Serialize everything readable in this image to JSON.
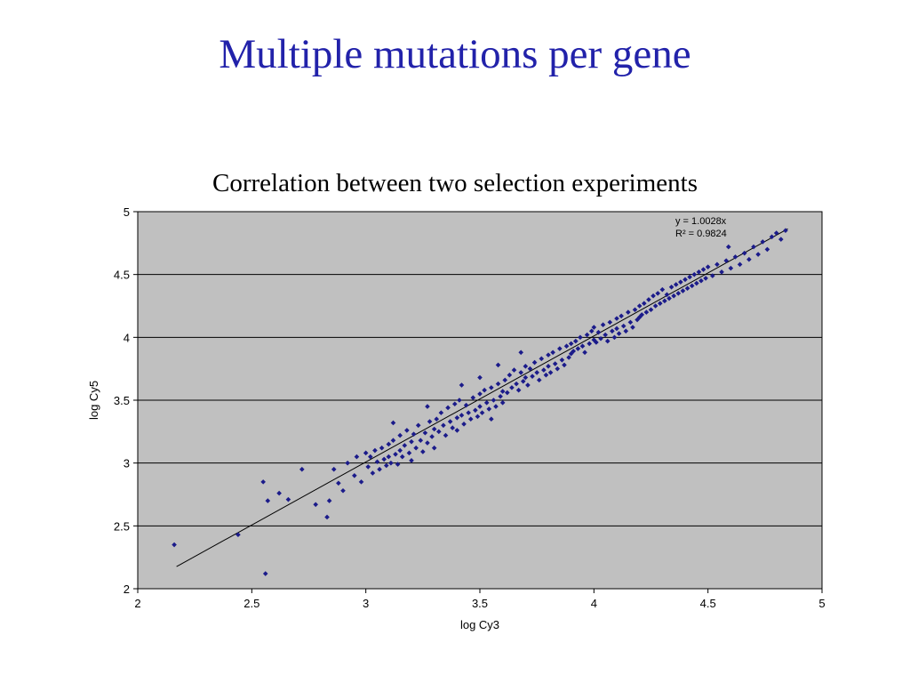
{
  "slide": {
    "title": "Multiple mutations per gene",
    "subtitle": "Correlation between two selection experiments"
  },
  "colors": {
    "title": "#2222aa",
    "subtitle": "#000000",
    "plot_bg": "#c0c0c0",
    "grid": "#000000",
    "point": "#1b1b8a",
    "trendline": "#000000"
  },
  "chart_data": {
    "type": "scatter",
    "title": "",
    "xlabel": "log Cy3",
    "ylabel": "log Cy5",
    "xlim": [
      2,
      5
    ],
    "ylim": [
      2,
      5
    ],
    "x_ticks": [
      2,
      2.5,
      3,
      3.5,
      4,
      4.5,
      5
    ],
    "y_ticks": [
      5,
      4.5,
      4,
      3.5,
      3,
      2.5,
      2
    ],
    "grid": "horizontal-major",
    "legend_position": "none",
    "annotation": [
      "y = 1.0028x",
      "R² = 0.9824"
    ],
    "trendline": {
      "slope": 1.0028,
      "intercept": 0,
      "x_start": 2.17,
      "x_end": 4.85
    },
    "points": [
      [
        2.16,
        2.35
      ],
      [
        2.44,
        2.43
      ],
      [
        2.55,
        2.85
      ],
      [
        2.56,
        2.12
      ],
      [
        2.57,
        2.7
      ],
      [
        2.62,
        2.76
      ],
      [
        2.66,
        2.71
      ],
      [
        2.72,
        2.95
      ],
      [
        2.78,
        2.67
      ],
      [
        2.83,
        2.57
      ],
      [
        2.84,
        2.7
      ],
      [
        2.86,
        2.95
      ],
      [
        2.88,
        2.84
      ],
      [
        2.9,
        2.78
      ],
      [
        2.92,
        3.0
      ],
      [
        2.95,
        2.9
      ],
      [
        2.96,
        3.05
      ],
      [
        2.98,
        2.85
      ],
      [
        3.0,
        3.08
      ],
      [
        3.01,
        2.97
      ],
      [
        3.02,
        3.05
      ],
      [
        3.03,
        2.92
      ],
      [
        3.04,
        3.1
      ],
      [
        3.05,
        3.01
      ],
      [
        3.06,
        2.95
      ],
      [
        3.07,
        3.12
      ],
      [
        3.08,
        3.03
      ],
      [
        3.09,
        2.98
      ],
      [
        3.1,
        3.15
      ],
      [
        3.1,
        3.05
      ],
      [
        3.11,
        3.0
      ],
      [
        3.12,
        3.32
      ],
      [
        3.12,
        3.18
      ],
      [
        3.13,
        3.07
      ],
      [
        3.14,
        2.99
      ],
      [
        3.15,
        3.22
      ],
      [
        3.15,
        3.1
      ],
      [
        3.16,
        3.05
      ],
      [
        3.17,
        3.14
      ],
      [
        3.18,
        3.26
      ],
      [
        3.19,
        3.08
      ],
      [
        3.2,
        3.17
      ],
      [
        3.2,
        3.02
      ],
      [
        3.21,
        3.23
      ],
      [
        3.22,
        3.12
      ],
      [
        3.23,
        3.3
      ],
      [
        3.24,
        3.18
      ],
      [
        3.25,
        3.09
      ],
      [
        3.26,
        3.24
      ],
      [
        3.27,
        3.45
      ],
      [
        3.27,
        3.16
      ],
      [
        3.28,
        3.33
      ],
      [
        3.29,
        3.21
      ],
      [
        3.3,
        3.27
      ],
      [
        3.3,
        3.12
      ],
      [
        3.31,
        3.35
      ],
      [
        3.32,
        3.25
      ],
      [
        3.33,
        3.4
      ],
      [
        3.34,
        3.3
      ],
      [
        3.35,
        3.22
      ],
      [
        3.36,
        3.44
      ],
      [
        3.37,
        3.33
      ],
      [
        3.38,
        3.28
      ],
      [
        3.39,
        3.47
      ],
      [
        3.4,
        3.36
      ],
      [
        3.4,
        3.26
      ],
      [
        3.41,
        3.5
      ],
      [
        3.42,
        3.62
      ],
      [
        3.42,
        3.38
      ],
      [
        3.43,
        3.31
      ],
      [
        3.44,
        3.46
      ],
      [
        3.45,
        3.4
      ],
      [
        3.46,
        3.35
      ],
      [
        3.47,
        3.52
      ],
      [
        3.48,
        3.42
      ],
      [
        3.49,
        3.37
      ],
      [
        3.5,
        3.68
      ],
      [
        3.5,
        3.55
      ],
      [
        3.5,
        3.45
      ],
      [
        3.51,
        3.4
      ],
      [
        3.52,
        3.58
      ],
      [
        3.53,
        3.48
      ],
      [
        3.54,
        3.43
      ],
      [
        3.55,
        3.35
      ],
      [
        3.55,
        3.6
      ],
      [
        3.56,
        3.5
      ],
      [
        3.57,
        3.45
      ],
      [
        3.58,
        3.78
      ],
      [
        3.58,
        3.63
      ],
      [
        3.59,
        3.53
      ],
      [
        3.6,
        3.57
      ],
      [
        3.6,
        3.48
      ],
      [
        3.61,
        3.66
      ],
      [
        3.62,
        3.56
      ],
      [
        3.63,
        3.7
      ],
      [
        3.64,
        3.6
      ],
      [
        3.65,
        3.74
      ],
      [
        3.66,
        3.63
      ],
      [
        3.67,
        3.58
      ],
      [
        3.68,
        3.88
      ],
      [
        3.68,
        3.72
      ],
      [
        3.69,
        3.65
      ],
      [
        3.7,
        3.77
      ],
      [
        3.7,
        3.68
      ],
      [
        3.71,
        3.62
      ],
      [
        3.72,
        3.75
      ],
      [
        3.73,
        3.69
      ],
      [
        3.74,
        3.8
      ],
      [
        3.75,
        3.72
      ],
      [
        3.76,
        3.66
      ],
      [
        3.77,
        3.83
      ],
      [
        3.78,
        3.74
      ],
      [
        3.79,
        3.7
      ],
      [
        3.8,
        3.86
      ],
      [
        3.8,
        3.77
      ],
      [
        3.81,
        3.72
      ],
      [
        3.82,
        3.88
      ],
      [
        3.83,
        3.79
      ],
      [
        3.84,
        3.75
      ],
      [
        3.85,
        3.91
      ],
      [
        3.86,
        3.82
      ],
      [
        3.87,
        3.78
      ],
      [
        3.88,
        3.93
      ],
      [
        3.89,
        3.84
      ],
      [
        3.9,
        3.95
      ],
      [
        3.9,
        3.87
      ],
      [
        3.91,
        3.89
      ],
      [
        3.92,
        3.97
      ],
      [
        3.93,
        3.91
      ],
      [
        3.94,
        4.0
      ],
      [
        3.95,
        3.93
      ],
      [
        3.96,
        3.88
      ],
      [
        3.97,
        4.02
      ],
      [
        3.98,
        3.95
      ],
      [
        3.99,
        4.05
      ],
      [
        4.0,
        3.98
      ],
      [
        4.0,
        4.08
      ],
      [
        4.01,
        3.96
      ],
      [
        4.02,
        4.04
      ],
      [
        4.03,
        3.99
      ],
      [
        4.04,
        4.1
      ],
      [
        4.05,
        4.02
      ],
      [
        4.06,
        3.97
      ],
      [
        4.07,
        4.12
      ],
      [
        4.08,
        4.05
      ],
      [
        4.09,
        4.0
      ],
      [
        4.1,
        4.15
      ],
      [
        4.1,
        4.07
      ],
      [
        4.11,
        4.03
      ],
      [
        4.12,
        4.17
      ],
      [
        4.13,
        4.09
      ],
      [
        4.14,
        4.05
      ],
      [
        4.15,
        4.2
      ],
      [
        4.16,
        4.12
      ],
      [
        4.17,
        4.08
      ],
      [
        4.18,
        4.22
      ],
      [
        4.19,
        4.14
      ],
      [
        4.2,
        4.25
      ],
      [
        4.2,
        4.16
      ],
      [
        4.21,
        4.18
      ],
      [
        4.22,
        4.27
      ],
      [
        4.23,
        4.2
      ],
      [
        4.24,
        4.3
      ],
      [
        4.25,
        4.22
      ],
      [
        4.26,
        4.33
      ],
      [
        4.27,
        4.25
      ],
      [
        4.28,
        4.35
      ],
      [
        4.29,
        4.27
      ],
      [
        4.3,
        4.38
      ],
      [
        4.31,
        4.29
      ],
      [
        4.32,
        4.34
      ],
      [
        4.33,
        4.31
      ],
      [
        4.34,
        4.4
      ],
      [
        4.35,
        4.33
      ],
      [
        4.36,
        4.42
      ],
      [
        4.37,
        4.35
      ],
      [
        4.38,
        4.44
      ],
      [
        4.39,
        4.37
      ],
      [
        4.4,
        4.46
      ],
      [
        4.41,
        4.39
      ],
      [
        4.42,
        4.48
      ],
      [
        4.43,
        4.41
      ],
      [
        4.44,
        4.5
      ],
      [
        4.45,
        4.43
      ],
      [
        4.46,
        4.52
      ],
      [
        4.47,
        4.45
      ],
      [
        4.48,
        4.54
      ],
      [
        4.49,
        4.47
      ],
      [
        4.5,
        4.56
      ],
      [
        4.52,
        4.49
      ],
      [
        4.54,
        4.58
      ],
      [
        4.56,
        4.52
      ],
      [
        4.58,
        4.61
      ],
      [
        4.59,
        4.72
      ],
      [
        4.6,
        4.55
      ],
      [
        4.62,
        4.64
      ],
      [
        4.64,
        4.58
      ],
      [
        4.66,
        4.67
      ],
      [
        4.68,
        4.62
      ],
      [
        4.7,
        4.72
      ],
      [
        4.72,
        4.66
      ],
      [
        4.74,
        4.76
      ],
      [
        4.76,
        4.7
      ],
      [
        4.78,
        4.8
      ],
      [
        4.8,
        4.83
      ],
      [
        4.82,
        4.78
      ],
      [
        4.84,
        4.85
      ]
    ]
  }
}
